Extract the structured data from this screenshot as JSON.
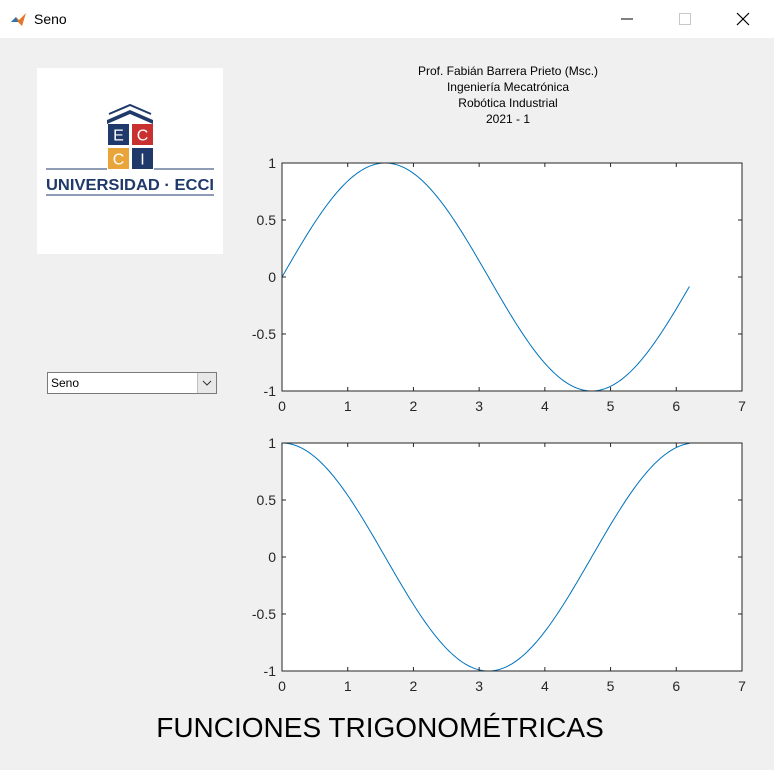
{
  "window": {
    "title": "Seno",
    "icon": "matlab-icon",
    "controls": [
      "minimize-icon",
      "maximize-icon",
      "close-icon"
    ]
  },
  "logo": {
    "text": "UNIVERSIDAD · ECCI",
    "letters": [
      "E",
      "C",
      "C",
      "I"
    ]
  },
  "popup": {
    "value": "Seno",
    "icon": "chevron-down-icon"
  },
  "header": {
    "lines": [
      "Prof. Fabián Barrera Prieto (Msc.)",
      "Ingeniería Mecatrónica",
      "Robótica Industrial",
      "2021 - 1"
    ]
  },
  "footer": {
    "title": "FUNCIONES TRIGONOMÉTRICAS"
  },
  "colors": {
    "line": "#0072bd",
    "window": "#f0f0f0",
    "logo_blue": "#1f3a6a",
    "logo_red": "#c8312f",
    "logo_yellow": "#e9a53a"
  },
  "chart_data": [
    {
      "type": "line",
      "function": "sin",
      "xlim": [
        0,
        7
      ],
      "ylim": [
        -1,
        1
      ],
      "xticks": [
        "0",
        "1",
        "2",
        "3",
        "4",
        "5",
        "6",
        "7"
      ],
      "yticks": [
        "1",
        "0.5",
        "0",
        "-0.5",
        "-1"
      ],
      "x_range": [
        0,
        6.2
      ],
      "x": [
        0,
        0.5,
        1.0,
        1.5,
        2.0,
        2.5,
        3.0,
        3.5,
        4.0,
        4.5,
        5.0,
        5.5,
        6.0,
        6.2
      ],
      "y": [
        0,
        0.479,
        0.841,
        0.997,
        0.909,
        0.598,
        0.141,
        -0.351,
        -0.757,
        -0.978,
        -0.959,
        -0.706,
        -0.279,
        -0.083
      ]
    },
    {
      "type": "line",
      "function": "cos",
      "xlim": [
        0,
        7
      ],
      "ylim": [
        -1,
        1
      ],
      "xticks": [
        "0",
        "1",
        "2",
        "3",
        "4",
        "5",
        "6",
        "7"
      ],
      "yticks": [
        "1",
        "0.5",
        "0",
        "-0.5",
        "-1"
      ],
      "x_range": [
        0,
        6.2
      ],
      "x": [
        0,
        0.5,
        1.0,
        1.5,
        2.0,
        2.5,
        3.0,
        3.5,
        4.0,
        4.5,
        5.0,
        5.5,
        6.0,
        6.2
      ],
      "y": [
        1,
        0.878,
        0.54,
        0.071,
        -0.416,
        -0.801,
        -0.99,
        -0.936,
        -0.654,
        -0.211,
        0.284,
        0.709,
        0.96,
        0.997
      ]
    }
  ]
}
